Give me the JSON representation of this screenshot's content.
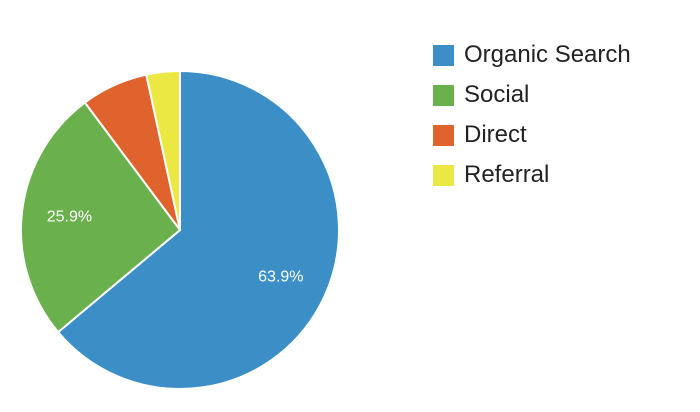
{
  "chart_data": {
    "type": "pie",
    "title": "",
    "slices": [
      {
        "label": "Organic Search",
        "value": 63.9,
        "display": "63.9%",
        "color": "#3b8ec6"
      },
      {
        "label": "Social",
        "value": 25.9,
        "display": "25.9%",
        "color": "#6ab04c"
      },
      {
        "label": "Direct",
        "value": 6.8,
        "display": "",
        "color": "#e0632e"
      },
      {
        "label": "Referral",
        "value": 3.4,
        "display": "",
        "color": "#ece843"
      }
    ],
    "start": "12 o'clock",
    "direction": "clockwise",
    "legend_position": "right",
    "legend": [
      "Organic Search",
      "Social",
      "Direct",
      "Referral"
    ]
  }
}
